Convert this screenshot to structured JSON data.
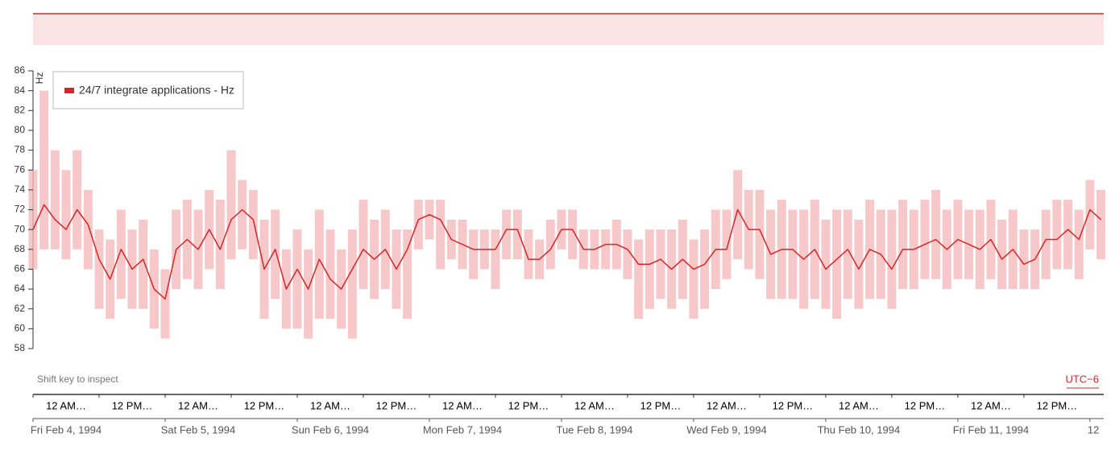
{
  "chart_data": {
    "type": "line",
    "y_label": "Hz",
    "ylim": [
      58,
      86
    ],
    "yticks": [
      58,
      60,
      62,
      64,
      66,
      68,
      70,
      72,
      74,
      76,
      78,
      80,
      82,
      84,
      86
    ],
    "xlim": [
      0,
      194.5
    ],
    "xticks": [
      {
        "value": 0,
        "label": "12 AM…"
      },
      {
        "value": 12,
        "label": "12 PM…"
      },
      {
        "value": 24,
        "label": "12 AM…"
      },
      {
        "value": 36,
        "label": "12 PM…"
      },
      {
        "value": 48,
        "label": "12 AM…"
      },
      {
        "value": 60,
        "label": "12 PM…"
      },
      {
        "value": 72,
        "label": "12 AM…"
      },
      {
        "value": 84,
        "label": "12 PM…"
      },
      {
        "value": 96,
        "label": "12 AM…"
      },
      {
        "value": 108,
        "label": "12 PM…"
      },
      {
        "value": 120,
        "label": "12 AM…"
      },
      {
        "value": 132,
        "label": "12 PM…"
      },
      {
        "value": 144,
        "label": "12 AM…"
      },
      {
        "value": 156,
        "label": "12 PM…"
      },
      {
        "value": 168,
        "label": "12 AM…"
      },
      {
        "value": 180,
        "label": "12 PM…"
      }
    ],
    "date_labels": [
      {
        "value": 0,
        "label": "Fri Feb 4, 1994"
      },
      {
        "value": 24,
        "label": "Sat Feb 5, 1994"
      },
      {
        "value": 48,
        "label": "Sun Feb 6, 1994"
      },
      {
        "value": 72,
        "label": "Mon Feb 7, 1994"
      },
      {
        "value": 96,
        "label": "Tue Feb 8, 1994"
      },
      {
        "value": 120,
        "label": "Wed Feb 9, 1994"
      },
      {
        "value": 144,
        "label": "Thu Feb 10, 1994"
      },
      {
        "value": 168,
        "label": "Fri Feb 11, 1994"
      },
      {
        "value": 192,
        "label": "12"
      }
    ],
    "x": [
      0,
      2,
      4,
      6,
      8,
      10,
      12,
      14,
      16,
      18,
      20,
      22,
      24,
      26,
      28,
      30,
      32,
      34,
      36,
      38,
      40,
      42,
      44,
      46,
      48,
      50,
      52,
      54,
      56,
      58,
      60,
      62,
      64,
      66,
      68,
      70,
      72,
      74,
      76,
      78,
      80,
      82,
      84,
      86,
      88,
      90,
      92,
      94,
      96,
      98,
      100,
      102,
      104,
      106,
      108,
      110,
      112,
      114,
      116,
      118,
      120,
      122,
      124,
      126,
      128,
      130,
      132,
      134,
      136,
      138,
      140,
      142,
      144,
      146,
      148,
      150,
      152,
      154,
      156,
      158,
      160,
      162,
      164,
      166,
      168,
      170,
      172,
      174,
      176,
      178,
      180,
      182,
      184,
      186,
      188,
      190,
      192,
      194
    ],
    "series": [
      {
        "name": "24/7 integrate applications - Hz",
        "color": "#d62728",
        "band_color": "#f4b6b8",
        "values": [
          70,
          72.5,
          71,
          70,
          72,
          70.5,
          67,
          65,
          68,
          66,
          67,
          64,
          63,
          68,
          69,
          68,
          70,
          68,
          71,
          72,
          71,
          66,
          68,
          64,
          66,
          64,
          67,
          65,
          64,
          66,
          68,
          67,
          68,
          66,
          68,
          71,
          71.5,
          71,
          69,
          68.5,
          68,
          68,
          68,
          70,
          70,
          67,
          67,
          68,
          70,
          70,
          68,
          68,
          68.5,
          68.5,
          68,
          66.5,
          66.5,
          67,
          66,
          67,
          66,
          66.5,
          68,
          68,
          72,
          70,
          70,
          67.5,
          68,
          68,
          67,
          68,
          66,
          67,
          68,
          66,
          68,
          67.5,
          66,
          68,
          68,
          68.5,
          69,
          68,
          69,
          68.5,
          68,
          69,
          67,
          68,
          66.5,
          67,
          69,
          69,
          70,
          69,
          72,
          71
        ],
        "low": [
          66,
          68,
          68,
          67,
          68,
          66,
          62,
          61,
          63,
          62,
          62,
          60,
          59,
          64,
          65,
          64,
          66,
          64,
          67,
          68,
          67,
          61,
          63,
          60,
          60,
          59,
          61,
          61,
          60,
          59,
          64,
          63,
          64,
          62,
          61,
          68,
          69,
          66,
          67,
          66,
          65,
          66,
          64,
          67,
          67,
          65,
          65,
          66,
          68,
          67,
          66,
          66,
          66,
          66,
          65,
          61,
          62,
          63,
          62,
          63,
          61,
          62,
          64,
          65,
          67,
          66,
          65,
          63,
          63,
          63,
          62,
          63,
          62,
          61,
          63,
          62,
          63,
          63,
          62,
          64,
          64,
          65,
          65,
          64,
          65,
          65,
          64,
          65,
          64,
          64,
          64,
          64,
          65,
          66,
          66,
          65,
          68,
          67
        ],
        "high": [
          76,
          84,
          78,
          76,
          78,
          74,
          70,
          69,
          72,
          70,
          71,
          68,
          66,
          72,
          73,
          72,
          74,
          73,
          78,
          75,
          74,
          71,
          72,
          68,
          70,
          68,
          72,
          70,
          68,
          70,
          73,
          71,
          72,
          70,
          70,
          73,
          73,
          73,
          71,
          71,
          70,
          70,
          70,
          72,
          72,
          70,
          69,
          71,
          72,
          72,
          70,
          70,
          70,
          71,
          70,
          69,
          70,
          70,
          70,
          71,
          69,
          70,
          72,
          72,
          76,
          74,
          74,
          72,
          73,
          72,
          72,
          73,
          71,
          72,
          72,
          71,
          73,
          72,
          72,
          73,
          72,
          73,
          74,
          72,
          73,
          72,
          72,
          73,
          71,
          72,
          70,
          70,
          72,
          73,
          73,
          72,
          75,
          74
        ]
      }
    ]
  },
  "ui": {
    "hint": "Shift key to inspect",
    "timezone": "UTC−6"
  }
}
